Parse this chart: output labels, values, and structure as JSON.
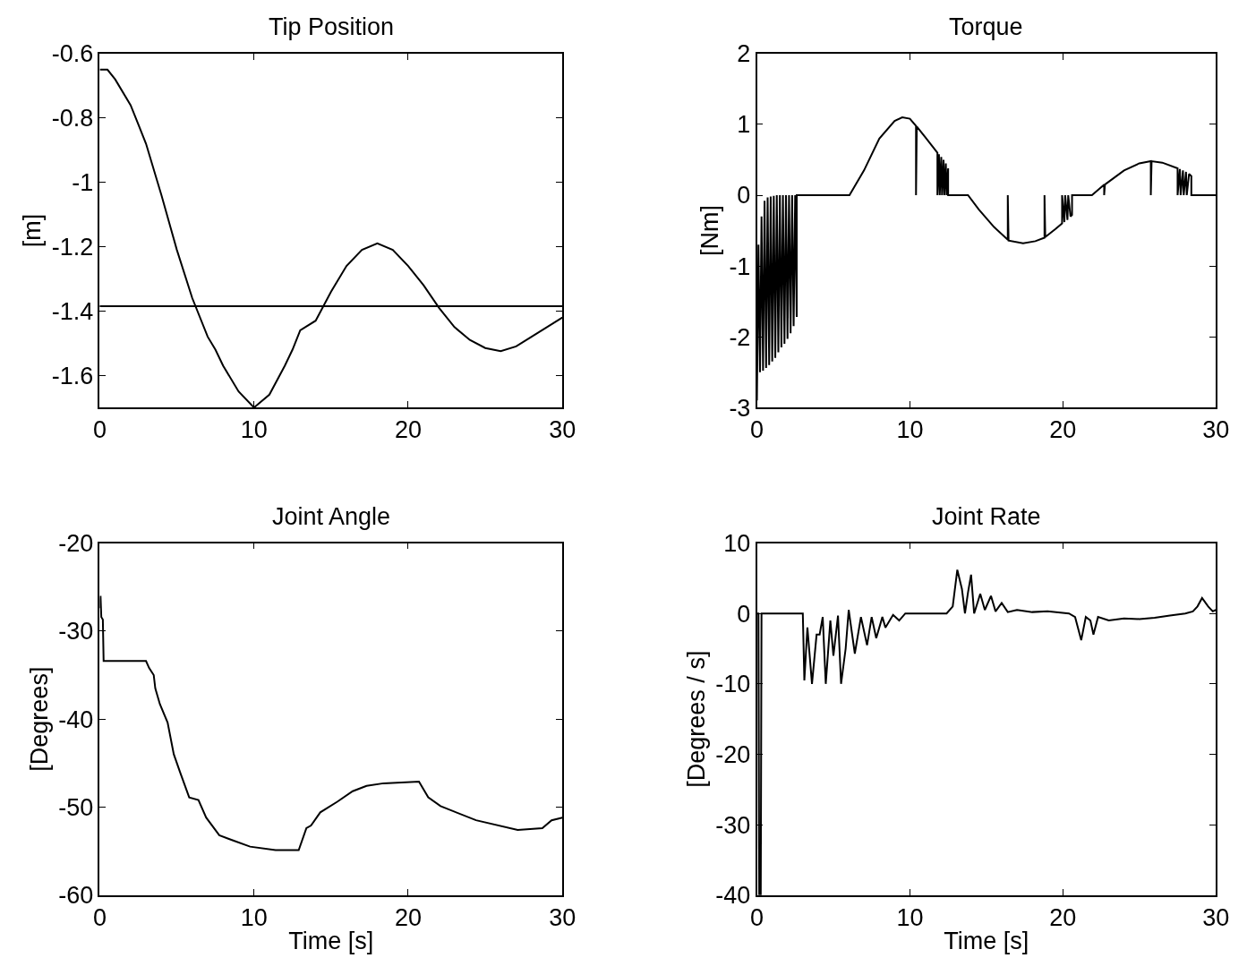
{
  "chart_data": [
    {
      "type": "line",
      "title": "Tip Position",
      "ylabel": "[m]",
      "xlim": [
        0,
        30
      ],
      "xticks": [
        0,
        10,
        20,
        30
      ],
      "ylim": [
        -1.7,
        -0.6
      ],
      "yticks": [
        -1.6,
        -1.4,
        -1.2,
        -1,
        -0.8,
        -0.6
      ],
      "x": [
        0,
        0.5,
        1,
        2,
        2.5,
        3,
        4,
        5,
        6,
        7,
        7.5,
        8,
        9,
        10,
        11,
        12,
        12.5,
        13,
        14,
        14.5,
        15,
        16,
        17,
        18,
        19,
        20,
        21,
        22,
        23,
        24,
        25,
        26,
        27,
        28,
        29,
        30
      ],
      "series": [
        {
          "color": "#000000",
          "values": [
            -0.65,
            -0.65,
            -0.68,
            -0.76,
            -0.82,
            -0.88,
            -1.04,
            -1.21,
            -1.36,
            -1.48,
            -1.52,
            -1.57,
            -1.65,
            -1.7,
            -1.66,
            -1.57,
            -1.52,
            -1.46,
            -1.43,
            -1.385,
            -1.34,
            -1.26,
            -1.21,
            -1.19,
            -1.21,
            -1.26,
            -1.32,
            -1.39,
            -1.45,
            -1.49,
            -1.515,
            -1.525,
            -1.51,
            -1.48,
            -1.45,
            -1.42
          ]
        }
      ],
      "ref_lines": [
        {
          "axis": "y",
          "value": -1.385,
          "color": "#000000"
        }
      ]
    },
    {
      "type": "line",
      "title": "Torque",
      "ylabel": "[Nm]",
      "xlim": [
        0,
        30
      ],
      "xticks": [
        0,
        10,
        20,
        30
      ],
      "ylim": [
        -3,
        2
      ],
      "yticks": [
        -3,
        -2,
        -1,
        0,
        1,
        2
      ],
      "x": [
        0,
        0.1,
        0.2,
        0.3,
        0.4,
        0.5,
        0.6,
        0.7,
        0.8,
        0.9,
        1.0,
        1.1,
        1.2,
        1.3,
        1.4,
        1.5,
        1.6,
        1.7,
        1.8,
        1.9,
        2.0,
        2.1,
        2.2,
        2.3,
        2.4,
        2.5,
        2.6,
        2.6,
        6.05,
        7,
        8,
        9,
        9.5,
        10,
        10.4,
        10.4,
        10.45,
        11,
        11.8,
        11.8,
        11.9,
        11.95,
        12.05,
        12.1,
        12.2,
        12.25,
        12.35,
        12.4,
        12.5,
        12.5,
        13.8,
        14.5,
        15.5,
        16.4,
        16.4,
        16.45,
        17.4,
        18.2,
        18.8,
        18.8,
        18.85,
        19.5,
        19.95,
        19.95,
        20.1,
        20.15,
        20.3,
        20.35,
        20.5,
        20.6,
        20.6,
        21.9,
        22.7,
        22.7,
        22.75,
        24,
        25,
        25.75,
        25.75,
        25.8,
        26.5,
        27.5,
        27.5,
        27.65,
        27.7,
        27.85,
        27.9,
        28.05,
        28.1,
        28.25,
        28.4,
        28.4,
        30
      ],
      "series": [
        {
          "color": "#000000",
          "values": [
            -2.9,
            -0.7,
            -2.5,
            -0.3,
            -2.48,
            -0.08,
            -2.44,
            -0.03,
            -2.4,
            -0.02,
            -2.35,
            -0.01,
            -2.3,
            0,
            -2.22,
            0,
            -2.15,
            0,
            -2.1,
            0,
            -2.03,
            0,
            -1.95,
            0,
            -1.85,
            0,
            -1.72,
            0,
            0,
            0.35,
            0.8,
            1.05,
            1.1,
            1.08,
            0.98,
            0,
            0.97,
            0.82,
            0.6,
            0,
            0.58,
            0,
            0.54,
            0,
            0.5,
            0,
            0.45,
            0,
            0.38,
            0,
            0,
            -0.2,
            -0.45,
            -0.63,
            0,
            -0.64,
            -0.68,
            -0.65,
            -0.6,
            0,
            -0.59,
            -0.48,
            -0.4,
            0,
            -0.38,
            0,
            -0.35,
            0,
            -0.3,
            -0.28,
            0,
            0,
            0.15,
            0,
            0.15,
            0.35,
            0.45,
            0.48,
            0,
            0.48,
            0.46,
            0.38,
            0,
            0.37,
            0,
            0.35,
            0,
            0.33,
            0,
            0.3,
            0.27,
            0,
            0
          ]
        }
      ]
    },
    {
      "type": "line",
      "title": "Joint Angle",
      "xlabel": "Time [s]",
      "ylabel": "[Degrees]",
      "xlim": [
        0,
        30
      ],
      "xticks": [
        0,
        10,
        20,
        30
      ],
      "ylim": [
        -60,
        -20
      ],
      "yticks": [
        -60,
        -50,
        -40,
        -30,
        -20
      ],
      "x": [
        0,
        0.05,
        0.1,
        0.2,
        0.25,
        3.0,
        3.2,
        3.5,
        3.6,
        3.9,
        4.4,
        4.8,
        5.2,
        5.8,
        6.4,
        6.9,
        7.75,
        8.65,
        9.75,
        11.4,
        12.9,
        13.4,
        13.7,
        14.3,
        15.4,
        16.4,
        17.3,
        18.4,
        20.7,
        21.3,
        22.1,
        24.4,
        27.1,
        28.7,
        29.3,
        30
      ],
      "series": [
        {
          "color": "#000000",
          "values": [
            -27.4,
            -26,
            -28.4,
            -28.7,
            -33.4,
            -33.4,
            -34.2,
            -35,
            -36.5,
            -38.3,
            -40.4,
            -44,
            -46,
            -48.9,
            -49.2,
            -51.2,
            -53.2,
            -53.8,
            -54.5,
            -54.9,
            -54.9,
            -52.4,
            -52.1,
            -50.6,
            -49.4,
            -48.2,
            -47.6,
            -47.3,
            -47.1,
            -48.9,
            -49.9,
            -51.5,
            -52.6,
            -52.4,
            -51.5,
            -51.2
          ]
        }
      ]
    },
    {
      "type": "line",
      "title": "Joint Rate",
      "xlabel": "Time [s]",
      "ylabel": "[Degrees / s]",
      "xlim": [
        0,
        30
      ],
      "xticks": [
        0,
        10,
        20,
        30
      ],
      "ylim": [
        -40,
        10
      ],
      "yticks": [
        -40,
        -30,
        -20,
        -10,
        0,
        10
      ],
      "x": [
        0,
        0.1,
        0.15,
        0.25,
        0.3,
        3.0,
        3.1,
        3.3,
        3.6,
        3.9,
        4.1,
        4.3,
        4.5,
        4.8,
        5.0,
        5.3,
        5.5,
        5.8,
        6.0,
        6.4,
        6.8,
        7.2,
        7.5,
        7.8,
        8.2,
        8.4,
        8.9,
        9.3,
        9.7,
        12.4,
        12.8,
        13.1,
        13.4,
        13.6,
        13.8,
        14.0,
        14.2,
        14.6,
        14.9,
        15.3,
        15.6,
        16.0,
        16.4,
        17,
        18,
        19,
        20.4,
        20.8,
        21.2,
        21.5,
        21.8,
        22.0,
        22.3,
        23,
        24,
        25,
        26,
        27,
        28,
        28.5,
        28.8,
        29.1,
        29.5,
        29.8,
        30
      ],
      "series": [
        {
          "color": "#000000",
          "values": [
            0,
            0,
            -40,
            -40,
            0,
            0,
            -9.5,
            -2,
            -10,
            -3,
            -3,
            -0.5,
            -10,
            -1,
            -6,
            -0.3,
            -10,
            -5,
            0.5,
            -5.7,
            -0.5,
            -4.5,
            -0.5,
            -3.5,
            -0.5,
            -2,
            -0.2,
            -1,
            0,
            0,
            1,
            6.2,
            3.5,
            0,
            3,
            5.5,
            0,
            2.8,
            0.5,
            2.5,
            0.3,
            1.5,
            0.2,
            0.5,
            0.2,
            0.3,
            0,
            -0.5,
            -3.8,
            -0.5,
            -1,
            -3,
            -0.5,
            -1,
            -0.7,
            -0.8,
            -0.6,
            -0.3,
            0,
            0.3,
            1,
            2.2,
            1,
            0.3,
            0.5
          ]
        }
      ]
    }
  ]
}
